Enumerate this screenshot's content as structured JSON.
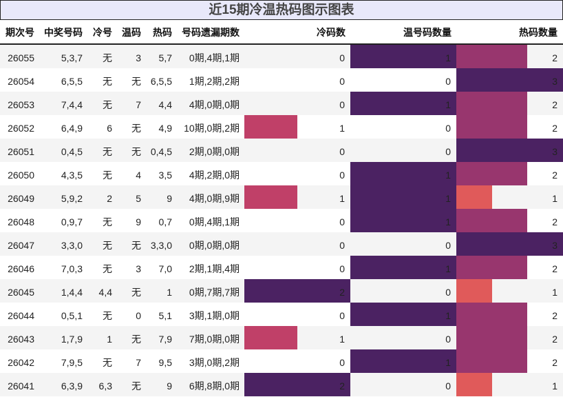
{
  "title": "近15期冷温热码图示图表",
  "headers": [
    "期次号",
    "中奖号码",
    "冷号",
    "温码",
    "热码",
    "号码遗漏期数",
    "冷码数",
    "温号码数量",
    "热码数量"
  ],
  "colors": {
    "row_odd": "#f4f4f4",
    "row_even": "#ffffff",
    "title_bg": "#e8e8fa",
    "bar_level_max": "#4b2262",
    "bar_level_mid": "#98366e",
    "bar_level_low": "#c04068",
    "bar_hot_1": "#e05a5a"
  },
  "rows": [
    {
      "issue": "26055",
      "numbers": "5,3,7",
      "cold": "无",
      "warm": "3",
      "hot": "5,7",
      "miss": "0期,4期,1期",
      "cold_count": "0",
      "warm_count": "1",
      "hot_count": "2"
    },
    {
      "issue": "26054",
      "numbers": "6,5,5",
      "cold": "无",
      "warm": "无",
      "hot": "6,5,5",
      "miss": "1期,2期,2期",
      "cold_count": "0",
      "warm_count": "0",
      "hot_count": "3"
    },
    {
      "issue": "26053",
      "numbers": "7,4,4",
      "cold": "无",
      "warm": "7",
      "hot": "4,4",
      "miss": "4期,0期,0期",
      "cold_count": "0",
      "warm_count": "1",
      "hot_count": "2"
    },
    {
      "issue": "26052",
      "numbers": "6,4,9",
      "cold": "6",
      "warm": "无",
      "hot": "4,9",
      "miss": "10期,0期,2期",
      "cold_count": "1",
      "warm_count": "0",
      "hot_count": "2"
    },
    {
      "issue": "26051",
      "numbers": "0,4,5",
      "cold": "无",
      "warm": "无",
      "hot": "0,4,5",
      "miss": "2期,0期,0期",
      "cold_count": "0",
      "warm_count": "0",
      "hot_count": "3"
    },
    {
      "issue": "26050",
      "numbers": "4,3,5",
      "cold": "无",
      "warm": "4",
      "hot": "3,5",
      "miss": "4期,2期,0期",
      "cold_count": "0",
      "warm_count": "1",
      "hot_count": "2"
    },
    {
      "issue": "26049",
      "numbers": "5,9,2",
      "cold": "2",
      "warm": "5",
      "hot": "9",
      "miss": "4期,0期,9期",
      "cold_count": "1",
      "warm_count": "1",
      "hot_count": "1"
    },
    {
      "issue": "26048",
      "numbers": "0,9,7",
      "cold": "无",
      "warm": "9",
      "hot": "0,7",
      "miss": "0期,4期,1期",
      "cold_count": "0",
      "warm_count": "1",
      "hot_count": "2"
    },
    {
      "issue": "26047",
      "numbers": "3,3,0",
      "cold": "无",
      "warm": "无",
      "hot": "3,3,0",
      "miss": "0期,0期,0期",
      "cold_count": "0",
      "warm_count": "0",
      "hot_count": "3"
    },
    {
      "issue": "26046",
      "numbers": "7,0,3",
      "cold": "无",
      "warm": "3",
      "hot": "7,0",
      "miss": "2期,1期,4期",
      "cold_count": "0",
      "warm_count": "1",
      "hot_count": "2"
    },
    {
      "issue": "26045",
      "numbers": "1,4,4",
      "cold": "4,4",
      "warm": "无",
      "hot": "1",
      "miss": "0期,7期,7期",
      "cold_count": "2",
      "warm_count": "0",
      "hot_count": "1"
    },
    {
      "issue": "26044",
      "numbers": "0,5,1",
      "cold": "无",
      "warm": "0",
      "hot": "5,1",
      "miss": "3期,1期,0期",
      "cold_count": "0",
      "warm_count": "1",
      "hot_count": "2"
    },
    {
      "issue": "26043",
      "numbers": "1,7,9",
      "cold": "1",
      "warm": "无",
      "hot": "7,9",
      "miss": "7期,0期,0期",
      "cold_count": "1",
      "warm_count": "0",
      "hot_count": "2"
    },
    {
      "issue": "26042",
      "numbers": "7,9,5",
      "cold": "无",
      "warm": "7",
      "hot": "9,5",
      "miss": "3期,0期,2期",
      "cold_count": "0",
      "warm_count": "1",
      "hot_count": "2"
    },
    {
      "issue": "26041",
      "numbers": "6,3,9",
      "cold": "6,3",
      "warm": "无",
      "hot": "9",
      "miss": "6期,8期,0期",
      "cold_count": "2",
      "warm_count": "0",
      "hot_count": "1"
    }
  ],
  "chart_data": {
    "type": "table",
    "title": "近15期冷温热码图示图表",
    "columns": [
      "期次号",
      "中奖号码",
      "冷号",
      "温码",
      "热码",
      "号码遗漏期数",
      "冷码数",
      "温号码数量",
      "热码数量"
    ],
    "categories": [
      "26055",
      "26054",
      "26053",
      "26052",
      "26051",
      "26050",
      "26049",
      "26048",
      "26047",
      "26046",
      "26045",
      "26044",
      "26043",
      "26042",
      "26041"
    ],
    "series": [
      {
        "name": "冷码数",
        "values": [
          0,
          0,
          0,
          1,
          0,
          0,
          1,
          0,
          0,
          0,
          2,
          0,
          1,
          0,
          2
        ],
        "max": 2
      },
      {
        "name": "温号码数量",
        "values": [
          1,
          0,
          1,
          0,
          0,
          1,
          1,
          1,
          0,
          1,
          0,
          1,
          0,
          1,
          0
        ],
        "max": 1
      },
      {
        "name": "热码数量",
        "values": [
          2,
          3,
          2,
          2,
          3,
          2,
          1,
          2,
          3,
          2,
          1,
          2,
          2,
          2,
          1
        ],
        "max": 3
      }
    ],
    "legend": "none",
    "grid": false
  }
}
